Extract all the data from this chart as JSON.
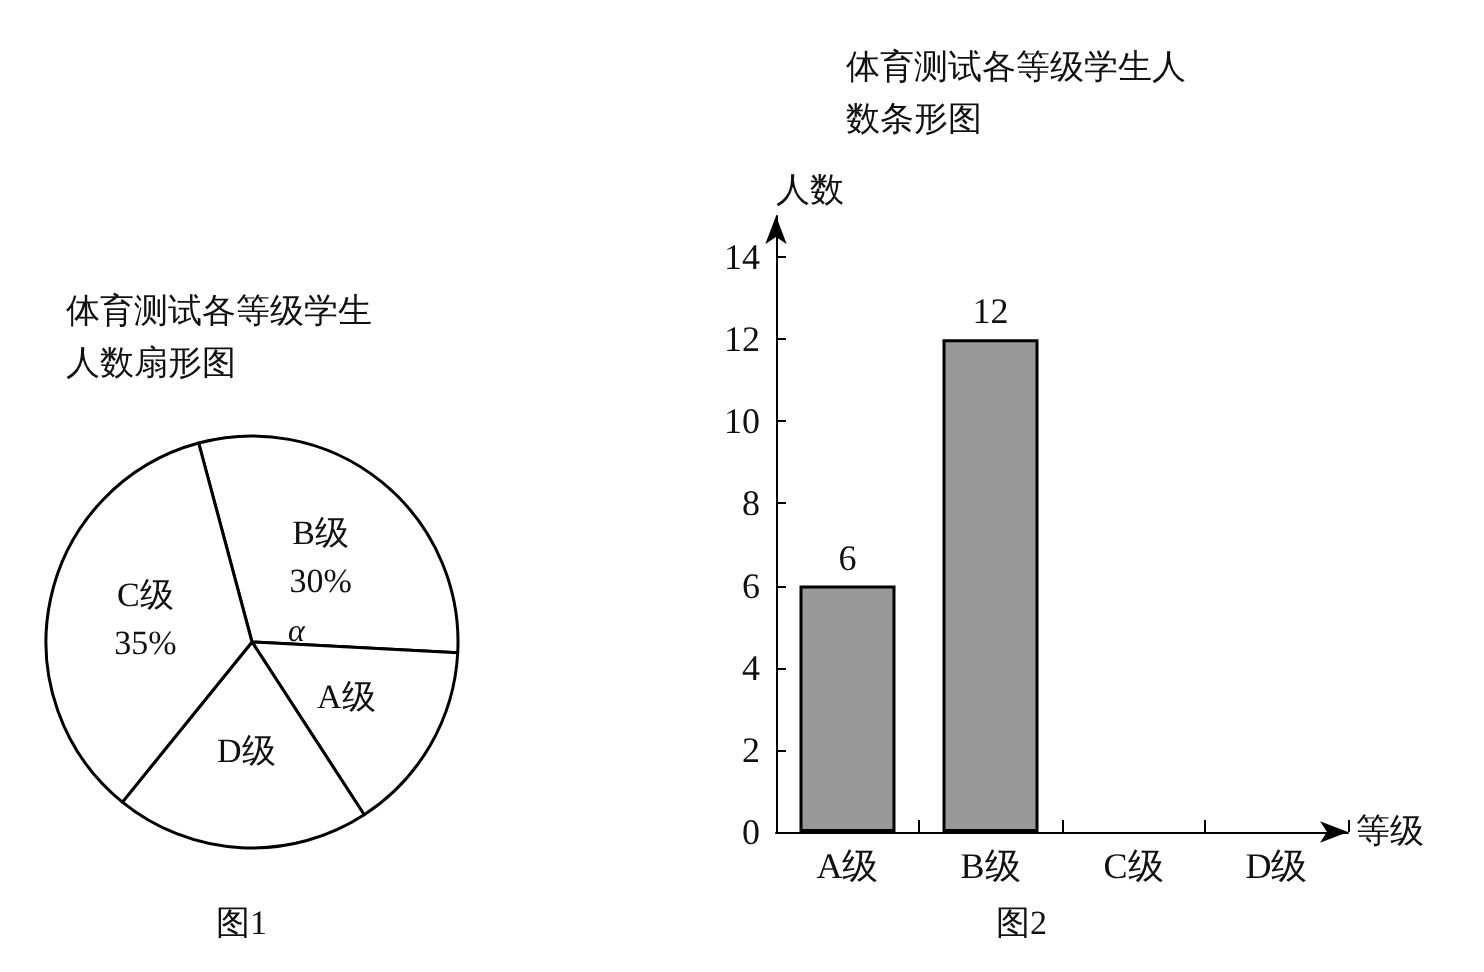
{
  "chart_data": [
    {
      "type": "pie",
      "title": "体育测试各等级学生人数扇形图",
      "categories": [
        "B级",
        "A级",
        "D级",
        "C级"
      ],
      "values": [
        30,
        15,
        20,
        35
      ],
      "colors": [
        "#ffffff",
        "#ffffff",
        "#ffffff",
        "#ffffff"
      ],
      "value_labels": [
        "30%",
        null,
        null,
        "35%"
      ],
      "annotations": [
        "α",
        "图1"
      ],
      "legend": false
    },
    {
      "type": "bar",
      "title": "体育测试各等级学生人数条形图",
      "categories": [
        "A级",
        "B级",
        "C级",
        "D级"
      ],
      "values": [
        6,
        12,
        null,
        null
      ],
      "color": "#999999",
      "ylim": [
        0,
        15
      ],
      "yticks": [
        0,
        2,
        4,
        6,
        8,
        10,
        12,
        14
      ],
      "ylabel": "人数",
      "xlabel": "等级",
      "data_labels": true,
      "grid": false,
      "legend": false,
      "annotations": [
        "图2"
      ]
    }
  ]
}
